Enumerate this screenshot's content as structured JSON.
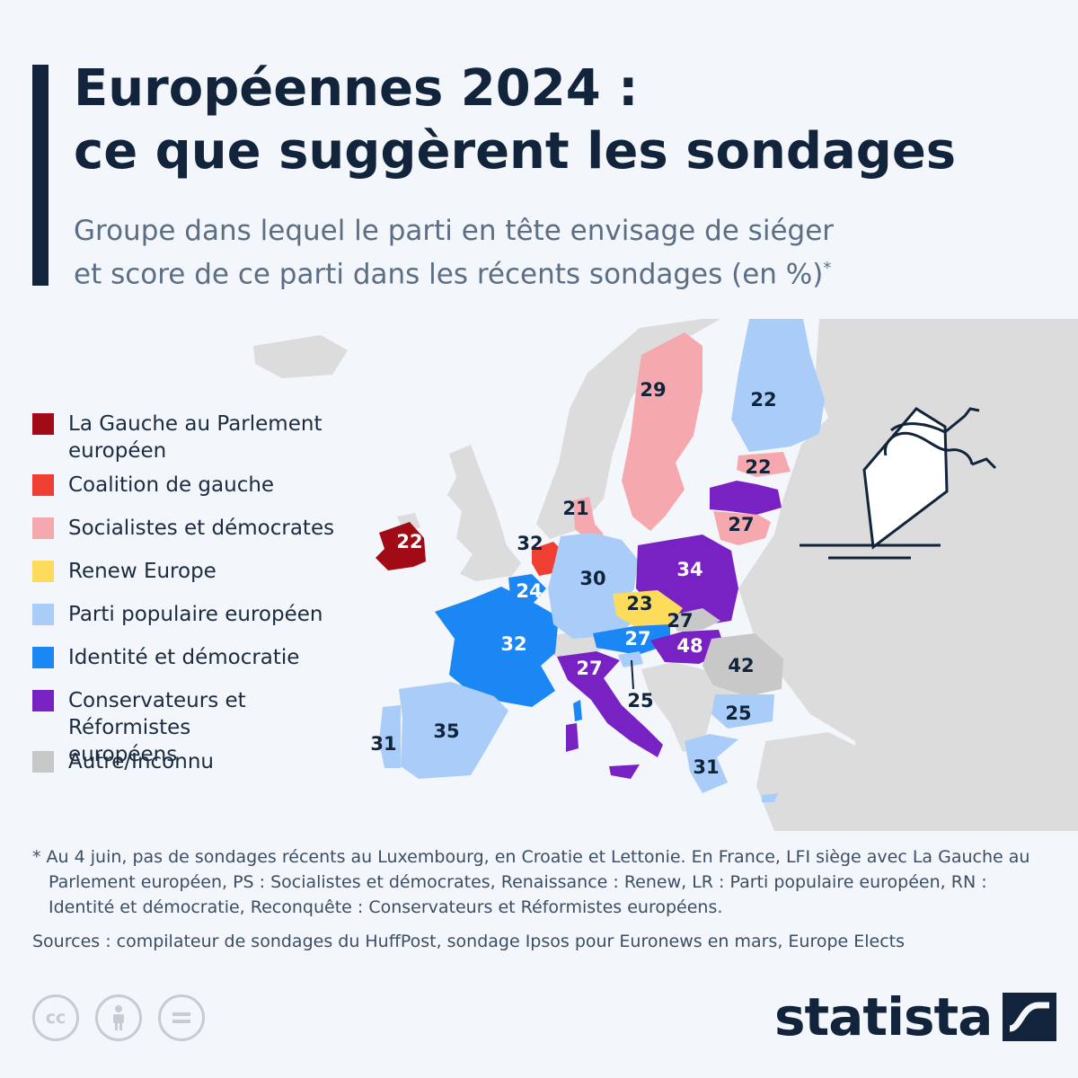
{
  "header": {
    "title_line1": "Européennes 2024 :",
    "title_line2": "ce que suggèrent les sondages",
    "subtitle_line1": "Groupe dans lequel le parti en tête envisage de siéger",
    "subtitle_line2": "et score de ce parti dans les récents sondages (en %)",
    "subtitle_mark": "*"
  },
  "legend": [
    {
      "label": "La Gauche au Parlement européen",
      "color": "#a10b15"
    },
    {
      "label": "Coalition de gauche",
      "color": "#ef3e32"
    },
    {
      "label": "Socialistes et démocrates",
      "color": "#f5a9ae"
    },
    {
      "label": "Renew Europe",
      "color": "#fddc5c"
    },
    {
      "label": "Parti populaire européen",
      "color": "#a9cdf8"
    },
    {
      "label": "Identité et démocratie",
      "color": "#1b87f5"
    },
    {
      "label": "Conservateurs et Réformistes européens",
      "color": "#7822c4"
    },
    {
      "label": "Autre/Inconnu",
      "color": "#c8c8c8"
    }
  ],
  "map": {
    "background_land_color": "#dcdcdc",
    "regions": [
      {
        "id": "ireland",
        "group": "La Gauche au Parlement européen",
        "score": "22"
      },
      {
        "id": "netherlands",
        "group": "Coalition de gauche",
        "score": "32"
      },
      {
        "id": "belgium",
        "group": "Identité et démocratie",
        "score": "24"
      },
      {
        "id": "france",
        "group": "Identité et démocratie",
        "score": "32"
      },
      {
        "id": "spain",
        "group": "Parti populaire européen",
        "score": "35"
      },
      {
        "id": "portugal",
        "group": "Parti populaire européen",
        "score": "31"
      },
      {
        "id": "germany",
        "group": "Parti populaire européen",
        "score": "30"
      },
      {
        "id": "denmark",
        "group": "Socialistes et démocrates",
        "score": "21"
      },
      {
        "id": "sweden",
        "group": "Socialistes et démocrates",
        "score": "29"
      },
      {
        "id": "finland",
        "group": "Parti populaire européen",
        "score": "22"
      },
      {
        "id": "estonia",
        "group": "Socialistes et démocrates",
        "score": "22"
      },
      {
        "id": "latvia",
        "group": "Conservateurs et Réformistes européens",
        "score": ""
      },
      {
        "id": "lithuania",
        "group": "Socialistes et démocrates",
        "score": "27"
      },
      {
        "id": "poland",
        "group": "Conservateurs et Réformistes européens",
        "score": "34"
      },
      {
        "id": "czechia",
        "group": "Renew Europe",
        "score": "23"
      },
      {
        "id": "slovakia",
        "group": "Autre/Inconnu",
        "score": "27"
      },
      {
        "id": "austria",
        "group": "Identité et démocratie",
        "score": "27"
      },
      {
        "id": "hungary",
        "group": "Conservateurs et Réformistes européens",
        "score": "48"
      },
      {
        "id": "romania",
        "group": "Autre/Inconnu",
        "score": "42"
      },
      {
        "id": "slovenia",
        "group": "Parti populaire européen",
        "score": "25"
      },
      {
        "id": "italy",
        "group": "Conservateurs et Réformistes européens",
        "score": "27"
      },
      {
        "id": "bulgaria",
        "group": "Parti populaire européen",
        "score": "25"
      },
      {
        "id": "greece",
        "group": "Parti populaire européen",
        "score": "31"
      }
    ]
  },
  "footnote": {
    "note": "* Au 4 juin, pas de sondages récents au Luxembourg, en Croatie et Lettonie. En France, LFI siège avec La Gauche au Parlement européen, PS : Socialistes et démocrates, Renaissance : Renew, LR : Parti populaire européen, RN : Identité et démocratie, Reconquête : Conservateurs et Réformistes européens.",
    "sources": "Sources : compilateur de sondages du HuffPost, sondage Ipsos pour Euronews en mars, Europe Elects"
  },
  "footer": {
    "cc_icons": [
      "cc-icon",
      "attribution-icon",
      "no-derivatives-icon"
    ],
    "cc_text": "cc",
    "brand": "statista",
    "brand_color": "#11243b"
  }
}
